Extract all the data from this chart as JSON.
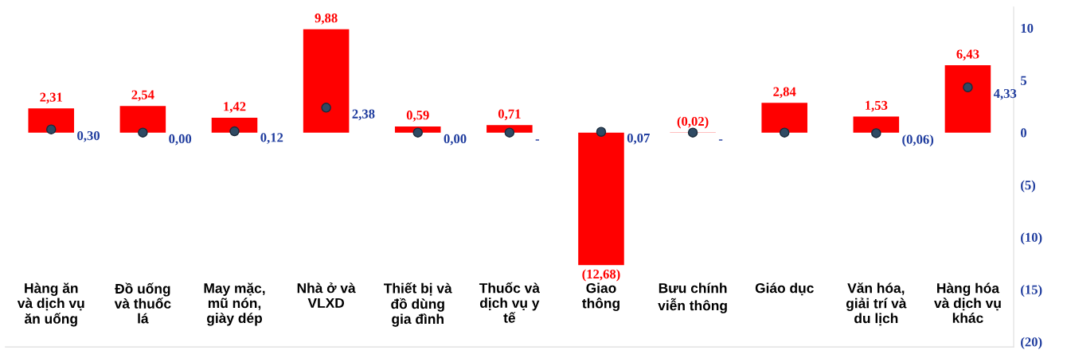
{
  "chart_data": {
    "type": "bar",
    "categories": [
      "Hàng ăn\nvà dịch vụ\năn uống",
      "Đồ uống\nvà thuốc\nlá",
      "May mặc,\nmũ nón,\ngiày dép",
      "Nhà ở và\nVLXD",
      "Thiết bị và\nđồ dùng\ngia đình",
      "Thuốc và\ndịch vụ y\ntế",
      "Giao\nthông",
      "Bưu chính\nviễn thông",
      "Giáo dục",
      "Văn hóa,\ngiải trí và\ndu lịch",
      "Hàng hóa\nvà dịch vụ\nkhác"
    ],
    "series": [
      {
        "color": "#ff0000",
        "values": [
          2.31,
          2.54,
          1.42,
          9.88,
          0.59,
          0.71,
          -12.68,
          -0.02,
          2.84,
          1.53,
          6.43
        ],
        "value_labels": [
          "2,31",
          "2,54",
          "1,42",
          "9,88",
          "0,59",
          "0,71",
          "(12,68)",
          "(0,02)",
          "2,84",
          "1,53",
          "6,43"
        ]
      },
      {
        "type": "scatter",
        "color": "#2f4a63",
        "marker": "circle",
        "values": [
          0.3,
          0.0,
          0.12,
          2.38,
          0.0,
          0,
          0.07,
          0,
          0,
          -0.06,
          4.33
        ],
        "value_labels": [
          "0,30",
          "0,00",
          "0,12",
          "2,38",
          "0,00",
          "-",
          "0,07",
          "-",
          null,
          "(0,06)",
          "4,33"
        ]
      }
    ],
    "ylim": [
      -20.5,
      12
    ],
    "yticks": [
      10,
      5,
      0,
      {
        "value": -5,
        "label": "(5)"
      },
      {
        "value": -10,
        "label": "(10)"
      },
      {
        "value": -15,
        "label": "(15)"
      },
      {
        "value": -20,
        "label": "(20)"
      }
    ],
    "grid": false,
    "legend": false
  }
}
